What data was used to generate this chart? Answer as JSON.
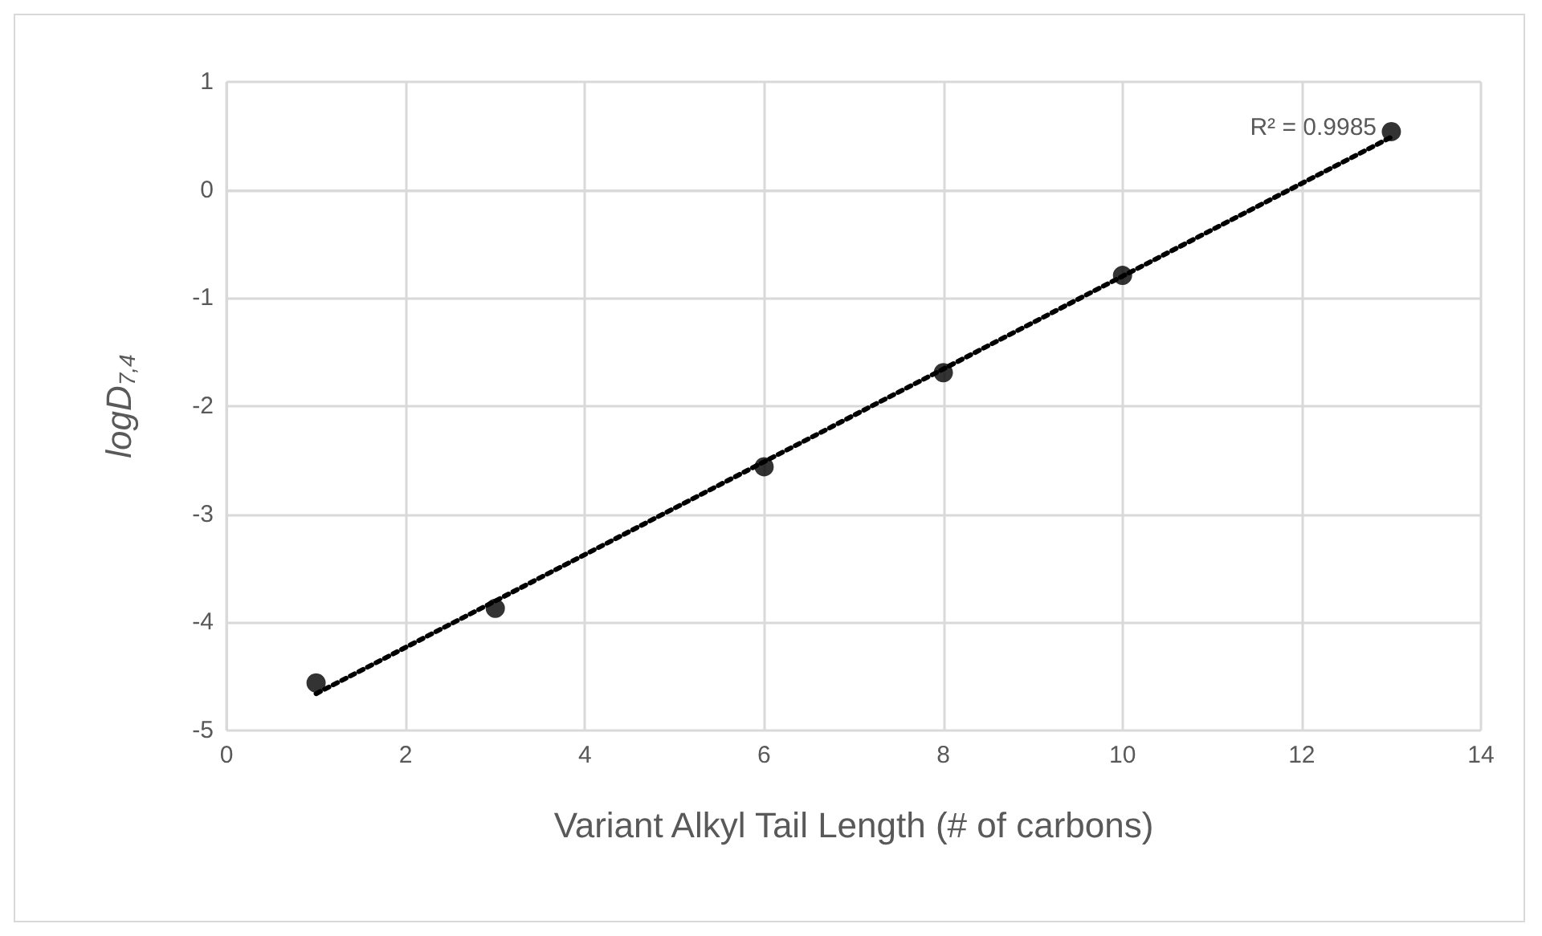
{
  "chart_data": {
    "type": "scatter",
    "xlabel": "Variant Alkyl Tail Length (# of carbons)",
    "ylabel": "logD$_{7,4}$",
    "x": [
      1,
      3,
      6,
      8,
      10,
      13
    ],
    "series": [
      {
        "color": "#000000",
        "values": [
          -4.56,
          -3.87,
          -2.56,
          -1.69,
          -0.79,
          0.54
        ]
      },
      {
        "type": "line",
        "color": "#000000",
        "x": [
          1,
          13
        ],
        "values": [
          -4.66,
          0.49
        ],
        "line_style": "dotted",
        "marker": "none"
      }
    ],
    "xlim": [
      0,
      14
    ],
    "xticks": [
      0,
      2,
      4,
      6,
      8,
      10,
      12,
      14
    ],
    "ylim": [
      -5,
      1
    ],
    "yticks": [
      -5,
      -4,
      -3,
      -2,
      -1,
      0,
      1
    ],
    "grid": true,
    "marker": "circle",
    "annotations": [
      "R² = 0.9985"
    ]
  }
}
